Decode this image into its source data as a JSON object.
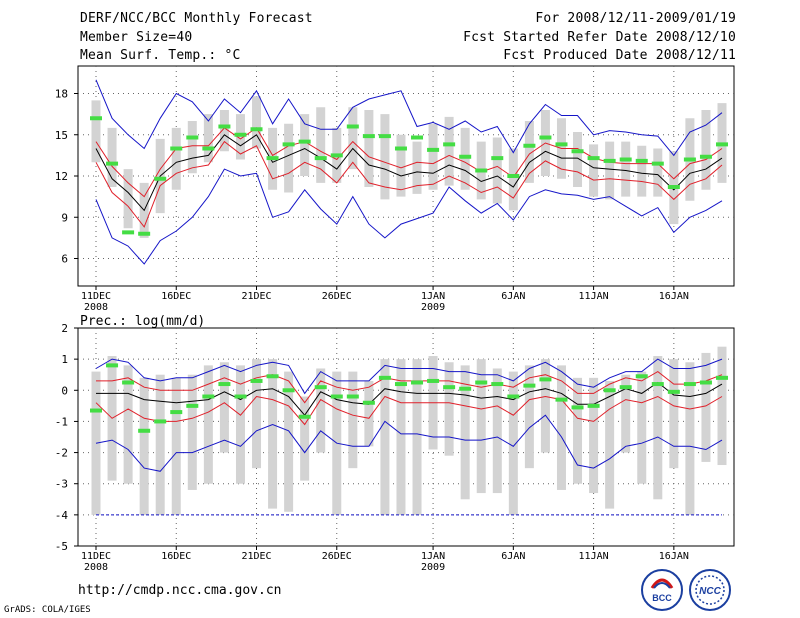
{
  "header": {
    "title": "DERF/NCC/BCC Monthly Forecast",
    "member_size": "Member Size=40",
    "variable": "Mean Surf. Temp.: °C",
    "period": "For 2008/12/11-2009/01/19",
    "fcst_started": "Fcst Started Refer Date 2008/12/10",
    "fcst_produced": "Fcst Produced Date 2008/12/11"
  },
  "footer": {
    "url": "http://cmdp.ncc.cma.gov.cn",
    "grads": "GrADS: COLA/IGES",
    "logo1_text": "BCC",
    "logo2_text": "NCC"
  },
  "colors": {
    "box": "#d3d3d3",
    "mean": "#000000",
    "inner": "#e0202a",
    "outer": "#1515c8",
    "obs": "#44dd44",
    "grid": "#666666"
  },
  "chart_data": [
    {
      "type": "line",
      "title": "Mean Surf. Temp.: °C",
      "ylim": [
        4,
        20
      ],
      "yticks": [
        6,
        9,
        12,
        15,
        18
      ],
      "xlim": [
        0,
        39
      ],
      "xticks": [
        {
          "day": 0,
          "label": "11DEC",
          "sub": "2008"
        },
        {
          "day": 5,
          "label": "16DEC",
          "sub": ""
        },
        {
          "day": 10,
          "label": "21DEC",
          "sub": ""
        },
        {
          "day": 15,
          "label": "26DEC",
          "sub": ""
        },
        {
          "day": 21,
          "label": "1JAN",
          "sub": "2009"
        },
        {
          "day": 26,
          "label": "6JAN",
          "sub": ""
        },
        {
          "day": 31,
          "label": "11JAN",
          "sub": ""
        },
        {
          "day": 36,
          "label": "16JAN",
          "sub": ""
        }
      ],
      "box_low": [
        13.0,
        11.2,
        8.2,
        7.5,
        9.3,
        11.0,
        12.2,
        13.0,
        13.8,
        13.2,
        14.0,
        11.0,
        10.8,
        12.0,
        11.5,
        11.5,
        12.5,
        11.2,
        10.3,
        10.5,
        10.7,
        11.0,
        11.3,
        11.0,
        10.3,
        10.0,
        9.5,
        11.5,
        12.0,
        11.8,
        11.2,
        10.5,
        10.3,
        10.5,
        10.5,
        10.5,
        8.5,
        10.2,
        11.0,
        11.5
      ],
      "box_high": [
        17.5,
        15.5,
        12.5,
        11.5,
        14.7,
        15.5,
        16.0,
        16.5,
        16.8,
        16.5,
        17.8,
        15.5,
        15.8,
        16.5,
        17.0,
        15.5,
        17.0,
        16.8,
        16.5,
        15.0,
        14.5,
        15.8,
        16.3,
        15.5,
        14.5,
        14.8,
        14.0,
        16.0,
        16.8,
        16.2,
        15.2,
        14.3,
        14.5,
        14.5,
        14.2,
        14.0,
        13.8,
        16.2,
        16.8,
        17.3
      ],
      "mean": [
        14.0,
        11.8,
        10.8,
        9.5,
        12.0,
        13.0,
        13.3,
        13.5,
        15.0,
        14.2,
        15.0,
        13.0,
        13.5,
        14.0,
        13.3,
        12.5,
        14.0,
        12.8,
        12.5,
        12.0,
        12.3,
        12.2,
        12.8,
        12.4,
        11.6,
        12.0,
        11.2,
        13.0,
        13.8,
        13.3,
        13.3,
        12.6,
        12.5,
        12.4,
        12.2,
        12.1,
        11.0,
        12.2,
        12.5,
        13.3
      ],
      "inner_high": [
        14.5,
        12.7,
        11.5,
        10.5,
        12.5,
        14.0,
        14.2,
        14.2,
        15.5,
        14.7,
        15.5,
        13.5,
        14.2,
        14.5,
        13.8,
        13.2,
        14.5,
        13.4,
        13.0,
        12.6,
        13.0,
        12.9,
        13.5,
        13.0,
        12.3,
        12.7,
        11.9,
        13.6,
        14.4,
        14.0,
        14.0,
        13.3,
        13.0,
        12.9,
        12.9,
        12.9,
        11.8,
        12.9,
        13.2,
        14.0
      ],
      "inner_low": [
        13.0,
        10.8,
        9.8,
        8.3,
        11.3,
        12.2,
        12.6,
        12.8,
        14.5,
        13.6,
        14.2,
        11.8,
        12.2,
        13.0,
        12.5,
        11.5,
        13.0,
        11.5,
        11.2,
        11.0,
        11.3,
        11.4,
        12.0,
        11.5,
        10.8,
        11.2,
        10.4,
        12.2,
        13.1,
        12.5,
        12.3,
        11.7,
        11.8,
        11.7,
        11.6,
        11.4,
        10.3,
        11.4,
        11.8,
        12.8
      ],
      "outer_high": [
        19.0,
        16.2,
        15.0,
        14.0,
        16.2,
        18.0,
        17.4,
        16.0,
        17.6,
        16.6,
        18.2,
        15.8,
        17.6,
        15.8,
        15.4,
        15.4,
        17.0,
        17.6,
        17.9,
        18.2,
        15.6,
        15.9,
        15.4,
        16.0,
        15.2,
        15.6,
        13.7,
        15.8,
        17.2,
        16.4,
        16.4,
        15.0,
        15.3,
        15.2,
        15.0,
        14.9,
        13.5,
        15.2,
        15.7,
        16.6
      ],
      "outer_low": [
        10.3,
        7.5,
        6.9,
        5.6,
        7.3,
        8.0,
        9.0,
        10.5,
        12.5,
        12.0,
        12.2,
        9.0,
        9.4,
        11.0,
        9.6,
        8.5,
        10.5,
        8.5,
        7.5,
        8.5,
        8.9,
        9.3,
        11.2,
        10.2,
        9.3,
        10.0,
        8.8,
        10.5,
        11.0,
        10.7,
        10.6,
        10.3,
        10.5,
        9.8,
        9.1,
        9.7,
        7.9,
        9.0,
        9.5,
        10.2
      ],
      "obs": [
        16.2,
        12.9,
        7.9,
        7.8,
        11.8,
        14.0,
        14.8,
        14.0,
        15.6,
        15.0,
        15.4,
        13.3,
        14.3,
        14.5,
        13.3,
        13.5,
        15.6,
        14.9,
        14.9,
        14.0,
        14.8,
        13.9,
        14.3,
        13.4,
        12.4,
        13.3,
        12.0,
        14.2,
        14.8,
        14.3,
        13.8,
        13.3,
        13.1,
        13.2,
        13.1,
        12.9,
        11.2,
        13.2,
        13.4,
        14.3
      ]
    },
    {
      "type": "line",
      "title": "Prec.: log(mm/d)",
      "ylim": [
        -5,
        2
      ],
      "yticks": [
        -5,
        -4,
        -3,
        -2,
        -1,
        0,
        1,
        2
      ],
      "xlim": [
        0,
        39
      ],
      "xticks": [
        {
          "day": 0,
          "label": "11DEC",
          "sub": "2008"
        },
        {
          "day": 5,
          "label": "16DEC",
          "sub": ""
        },
        {
          "day": 10,
          "label": "21DEC",
          "sub": ""
        },
        {
          "day": 15,
          "label": "26DEC",
          "sub": ""
        },
        {
          "day": 21,
          "label": "1JAN",
          "sub": "2009"
        },
        {
          "day": 26,
          "label": "6JAN",
          "sub": ""
        },
        {
          "day": 31,
          "label": "11JAN",
          "sub": ""
        },
        {
          "day": 36,
          "label": "16JAN",
          "sub": ""
        }
      ],
      "box_low": [
        -4.0,
        -2.9,
        -3.0,
        -4.0,
        -4.0,
        -4.0,
        -3.2,
        -3.0,
        -2.0,
        -3.0,
        -2.5,
        -3.8,
        -3.9,
        -2.9,
        -2.0,
        -4.0,
        -2.5,
        -1.8,
        -4.0,
        -4.0,
        -4.0,
        -1.9,
        -2.1,
        -3.5,
        -3.3,
        -3.3,
        -4.0,
        -2.5,
        -2.0,
        -3.2,
        -3.0,
        -3.3,
        -3.8,
        -2.0,
        -3.0,
        -3.5,
        -2.5,
        -4.0,
        -2.3,
        -2.4
      ],
      "box_high": [
        0.6,
        1.1,
        0.8,
        0.4,
        0.5,
        0.4,
        0.5,
        0.8,
        0.9,
        0.8,
        1.0,
        1.0,
        0.6,
        -0.2,
        0.7,
        0.6,
        0.6,
        0.3,
        1.0,
        1.0,
        1.0,
        1.1,
        0.9,
        0.8,
        1.0,
        0.7,
        0.6,
        0.8,
        1.0,
        0.8,
        0.4,
        0.4,
        0.3,
        0.5,
        0.6,
        1.1,
        1.0,
        0.9,
        1.2,
        1.4
      ],
      "mean": [
        -0.1,
        -0.1,
        -0.1,
        -0.3,
        -0.35,
        -0.4,
        -0.35,
        -0.3,
        -0.05,
        -0.3,
        0.0,
        0.05,
        -0.2,
        -0.8,
        -0.05,
        -0.3,
        -0.4,
        -0.45,
        0.05,
        -0.05,
        -0.1,
        -0.1,
        -0.1,
        -0.15,
        -0.25,
        -0.2,
        -0.3,
        -0.05,
        0.05,
        -0.1,
        -0.45,
        -0.45,
        -0.2,
        0.05,
        -0.1,
        0.25,
        -0.15,
        -0.2,
        -0.1,
        0.2
      ],
      "inner_high": [
        0.3,
        0.3,
        0.4,
        0.1,
        0.0,
        0.0,
        0.0,
        0.2,
        0.4,
        0.2,
        0.4,
        0.5,
        0.3,
        -0.4,
        0.3,
        0.1,
        0.0,
        0.1,
        0.4,
        0.3,
        0.3,
        0.3,
        0.3,
        0.2,
        0.1,
        0.2,
        0.1,
        0.4,
        0.5,
        0.3,
        -0.1,
        -0.1,
        0.2,
        0.4,
        0.3,
        0.6,
        0.2,
        0.2,
        0.3,
        0.5
      ],
      "inner_low": [
        -0.4,
        -0.9,
        -0.6,
        -0.9,
        -1.0,
        -1.0,
        -0.9,
        -0.7,
        -0.4,
        -0.8,
        -0.2,
        -0.3,
        -0.5,
        -1.1,
        -0.3,
        -0.6,
        -0.8,
        -0.9,
        -0.2,
        -0.4,
        -0.4,
        -0.4,
        -0.4,
        -0.5,
        -0.6,
        -0.5,
        -0.8,
        -0.3,
        -0.2,
        -0.3,
        -0.9,
        -1.0,
        -0.6,
        -0.3,
        -0.4,
        -0.2,
        -0.5,
        -0.6,
        -0.5,
        -0.2
      ],
      "outer_high": [
        0.7,
        1.0,
        0.9,
        0.4,
        0.3,
        0.4,
        0.4,
        0.6,
        0.8,
        0.6,
        0.8,
        0.9,
        0.8,
        -0.1,
        0.6,
        0.3,
        0.3,
        0.3,
        0.8,
        0.7,
        0.7,
        0.7,
        0.6,
        0.6,
        0.5,
        0.5,
        0.3,
        0.7,
        0.9,
        0.6,
        0.2,
        0.1,
        0.4,
        0.6,
        0.6,
        1.0,
        0.7,
        0.7,
        0.8,
        1.0
      ],
      "outer_low": [
        -1.7,
        -1.6,
        -1.9,
        -2.5,
        -2.6,
        -2.0,
        -2.0,
        -1.8,
        -1.6,
        -1.8,
        -1.3,
        -1.1,
        -1.3,
        -2.0,
        -1.3,
        -1.7,
        -1.8,
        -1.8,
        -1.0,
        -1.4,
        -1.4,
        -1.5,
        -1.5,
        -1.6,
        -1.6,
        -1.5,
        -1.8,
        -1.2,
        -0.8,
        -1.5,
        -2.4,
        -2.5,
        -2.2,
        -1.8,
        -1.7,
        -1.5,
        -1.8,
        -1.8,
        -1.9,
        -1.6
      ],
      "obs": [
        -0.65,
        0.8,
        0.25,
        -1.3,
        -1.0,
        -0.7,
        -0.5,
        -0.2,
        0.2,
        -0.2,
        0.3,
        0.45,
        0.0,
        -0.85,
        0.1,
        -0.2,
        -0.2,
        -0.4,
        0.4,
        0.2,
        0.25,
        0.3,
        0.1,
        0.05,
        0.25,
        0.2,
        -0.2,
        0.15,
        0.35,
        -0.3,
        -0.55,
        -0.5,
        0.0,
        0.1,
        0.45,
        0.2,
        -0.05,
        0.2,
        0.25,
        0.4
      ],
      "floor": -4.0
    }
  ]
}
